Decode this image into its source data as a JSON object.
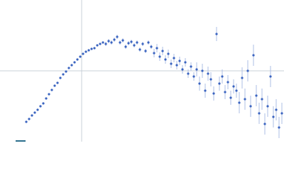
{
  "chart_data": {
    "type": "scatter",
    "xlim": [
      -115,
      285
    ],
    "ylim": [
      -100,
      100
    ],
    "xticks": [
      0
    ],
    "yticks": [
      0
    ],
    "grid": true,
    "series": [
      {
        "color": "#3a64c0",
        "error_color": "#aebfe6",
        "x": [
          -78,
          -74,
          -70,
          -66,
          -62,
          -58,
          -54,
          -50,
          -46,
          -42,
          -38,
          -34,
          -30,
          -26,
          -22,
          -18,
          -14,
          -10,
          -6,
          -2,
          2,
          6,
          10,
          14,
          18,
          22,
          26,
          30,
          34,
          38,
          42,
          46,
          50,
          54,
          58,
          62,
          66,
          70,
          74,
          78,
          82,
          86,
          90,
          94,
          98,
          102,
          106,
          110,
          114,
          118,
          122,
          126,
          130,
          134,
          138,
          142,
          146,
          150,
          154,
          158,
          162,
          166,
          170,
          174,
          178,
          182,
          186,
          190,
          194,
          198,
          202,
          206,
          210,
          214,
          218,
          222,
          226,
          230,
          234,
          238,
          242,
          246,
          250,
          254,
          258,
          262,
          266,
          270,
          274,
          278,
          282
        ],
        "values": [
          -72,
          -68,
          -63,
          -59,
          -55,
          -50,
          -46,
          -39,
          -33,
          -27,
          -21,
          -17,
          -10,
          -5,
          -1,
          4,
          8,
          12,
          16,
          20,
          24,
          27,
          29,
          31,
          32,
          36,
          38,
          40,
          38,
          42,
          40,
          44,
          48,
          40,
          43,
          34,
          39,
          41,
          36,
          40,
          30,
          38,
          28,
          40,
          34,
          25,
          32,
          20,
          28,
          16,
          24,
          10,
          18,
          8,
          14,
          2,
          12,
          -4,
          6,
          -8,
          2,
          -18,
          0,
          -28,
          -4,
          -12,
          -32,
          52,
          -18,
          -8,
          -30,
          -16,
          -38,
          -22,
          -28,
          -45,
          -10,
          -40,
          0,
          -50,
          22,
          -35,
          -60,
          -40,
          -75,
          -50,
          -8,
          -65,
          -55,
          -80,
          -60
        ],
        "errors": [
          1.5,
          1.5,
          1.5,
          1.5,
          1.5,
          1.5,
          1.5,
          1.5,
          1.5,
          1.5,
          1.5,
          1.5,
          1.5,
          1.5,
          1.5,
          1.5,
          1.5,
          1.5,
          1.5,
          1.5,
          1.5,
          1.5,
          1.5,
          1.5,
          1.5,
          1.5,
          1.5,
          1.5,
          3,
          3,
          3,
          3,
          3,
          3,
          3,
          3,
          3,
          3,
          3,
          3,
          3,
          3,
          3,
          3,
          3,
          6,
          6,
          6,
          6,
          6,
          6,
          6,
          6,
          6,
          6,
          6,
          6,
          6,
          6,
          6,
          10,
          10,
          10,
          10,
          10,
          10,
          10,
          10,
          10,
          10,
          10,
          10,
          10,
          10,
          10,
          15,
          15,
          15,
          15,
          15,
          15,
          15,
          15,
          15,
          15,
          15,
          15,
          15,
          15,
          15,
          15
        ]
      }
    ]
  }
}
